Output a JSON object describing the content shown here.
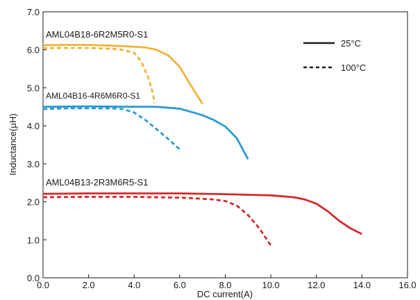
{
  "chart_data": {
    "type": "line",
    "xlabel": "DC current(A)",
    "ylabel": "Inductance(μH)",
    "xlim": [
      0,
      16
    ],
    "ylim": [
      0,
      7
    ],
    "x_ticks": [
      "0.0",
      "2.0",
      "4.0",
      "6.0",
      "8.0",
      "10.0",
      "12.0",
      "14.0",
      "16.0"
    ],
    "y_ticks": [
      "0.0",
      "1.0",
      "2.0",
      "3.0",
      "4.0",
      "5.0",
      "6.0",
      "7.0"
    ],
    "legend": [
      {
        "label": "25°C",
        "style": "solid"
      },
      {
        "label": "100°C",
        "style": "dashed"
      }
    ],
    "legend_position": "top-right",
    "grid": false,
    "series": [
      {
        "label": "AML04B18-6R2M5R0-S1",
        "color": "#f0b23a",
        "curves": [
          {
            "temp": "25°C",
            "style": "solid",
            "points": [
              [
                0,
                6.12
              ],
              [
                1,
                6.13
              ],
              [
                2,
                6.13
              ],
              [
                3,
                6.11
              ],
              [
                4,
                6.08
              ],
              [
                4.5,
                6.06
              ],
              [
                5,
                6.0
              ],
              [
                5.5,
                5.85
              ],
              [
                6,
                5.55
              ],
              [
                6.5,
                5.05
              ],
              [
                7,
                4.58
              ]
            ]
          },
          {
            "temp": "100°C",
            "style": "dashed",
            "points": [
              [
                0,
                6.04
              ],
              [
                1,
                6.05
              ],
              [
                2,
                6.05
              ],
              [
                3,
                6.03
              ],
              [
                3.5,
                6.0
              ],
              [
                4,
                5.92
              ],
              [
                4.3,
                5.7
              ],
              [
                4.6,
                5.3
              ],
              [
                4.8,
                4.9
              ],
              [
                4.9,
                4.6
              ]
            ]
          }
        ]
      },
      {
        "label": "AML04B16-4R6M6R0-S1",
        "color": "#2a9ad4",
        "curves": [
          {
            "temp": "25°C",
            "style": "solid",
            "points": [
              [
                0,
                4.5
              ],
              [
                2,
                4.51
              ],
              [
                4,
                4.5
              ],
              [
                5,
                4.5
              ],
              [
                6,
                4.45
              ],
              [
                7,
                4.28
              ],
              [
                7.5,
                4.15
              ],
              [
                8,
                3.98
              ],
              [
                8.5,
                3.68
              ],
              [
                9,
                3.12
              ]
            ]
          },
          {
            "temp": "100°C",
            "style": "dashed",
            "points": [
              [
                0,
                4.44
              ],
              [
                1,
                4.46
              ],
              [
                2,
                4.46
              ],
              [
                3,
                4.46
              ],
              [
                3.5,
                4.44
              ],
              [
                4,
                4.35
              ],
              [
                4.5,
                4.15
              ],
              [
                5,
                3.9
              ],
              [
                5.5,
                3.65
              ],
              [
                6,
                3.38
              ]
            ]
          }
        ]
      },
      {
        "label": "AML04B13-2R3M6R5-S1",
        "color": "#d12a2a",
        "curves": [
          {
            "temp": "25°C",
            "style": "solid",
            "points": [
              [
                0,
                2.21
              ],
              [
                2,
                2.22
              ],
              [
                4,
                2.22
              ],
              [
                6,
                2.22
              ],
              [
                8,
                2.2
              ],
              [
                10,
                2.17
              ],
              [
                11,
                2.12
              ],
              [
                11.5,
                2.06
              ],
              [
                12,
                1.95
              ],
              [
                12.5,
                1.75
              ],
              [
                13,
                1.5
              ],
              [
                13.5,
                1.3
              ],
              [
                14,
                1.15
              ]
            ]
          },
          {
            "temp": "100°C",
            "style": "dashed",
            "points": [
              [
                0,
                2.12
              ],
              [
                2,
                2.13
              ],
              [
                4,
                2.13
              ],
              [
                6,
                2.11
              ],
              [
                7,
                2.08
              ],
              [
                7.5,
                2.06
              ],
              [
                8,
                2.02
              ],
              [
                8.5,
                1.9
              ],
              [
                9,
                1.65
              ],
              [
                9.5,
                1.3
              ],
              [
                10,
                0.85
              ]
            ]
          }
        ]
      }
    ]
  }
}
